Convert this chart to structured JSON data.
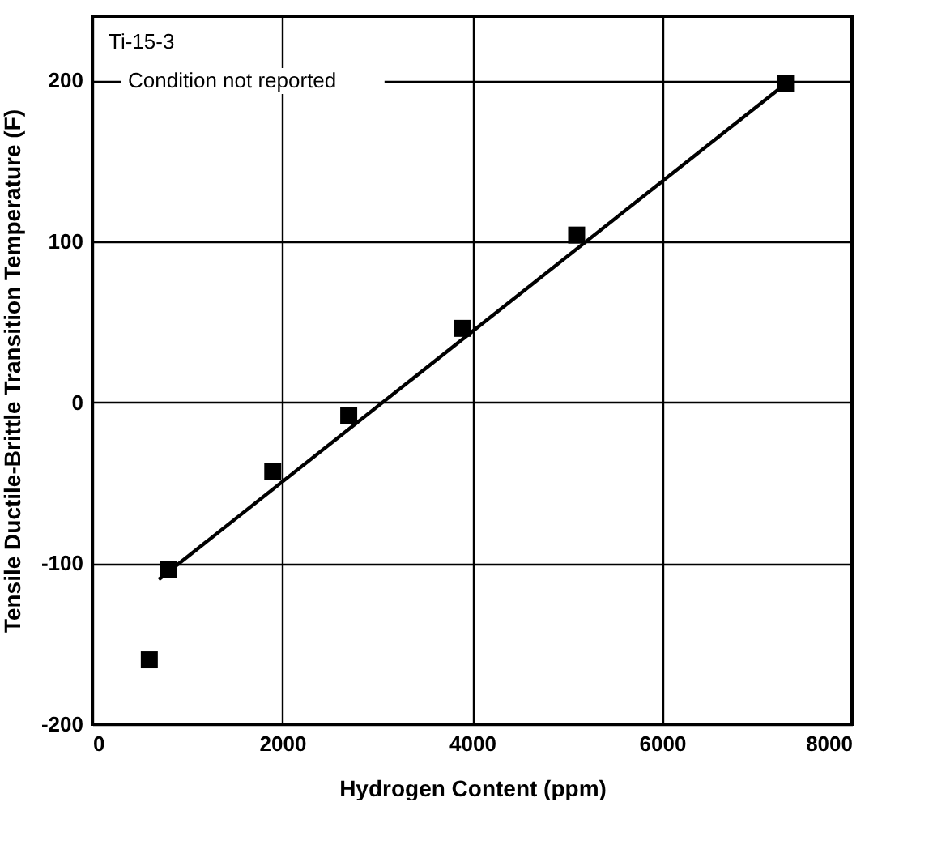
{
  "chart_data": {
    "type": "scatter",
    "xlabel": "Hydrogen Content (ppm)",
    "ylabel": "Tensile Ductile-Brittle Transition Temperature (F)",
    "annotations": [
      "Ti-15-3",
      "Condition not reported"
    ],
    "series": [
      {
        "color": "#000000",
        "marker": "square",
        "x": [
          600,
          800,
          1900,
          2700,
          3900,
          5100,
          7300
        ],
        "values": [
          -160,
          -104,
          -43,
          -8,
          46,
          104,
          198
        ]
      },
      {
        "type": "line",
        "color": "#000000",
        "marker": "none",
        "x": [
          700,
          7300
        ],
        "values": [
          -110,
          198
        ]
      }
    ],
    "xlim": [
      0,
      8000
    ],
    "xticks": [
      0,
      2000,
      4000,
      6000,
      8000
    ],
    "ylim": [
      -200,
      240
    ],
    "yticks": [
      -200,
      -100,
      0,
      100,
      200
    ],
    "grid": true
  }
}
